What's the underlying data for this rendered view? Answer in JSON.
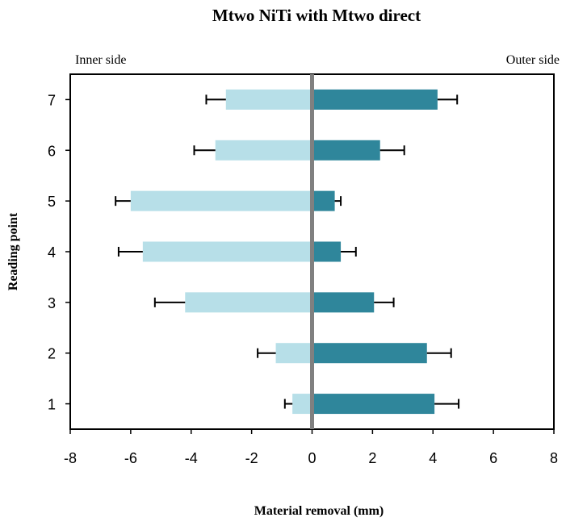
{
  "chart_data": {
    "type": "bar",
    "orientation": "horizontal",
    "title": "Mtwo NiTi with Mtwo direct",
    "xlabel": "Material removal (mm)",
    "ylabel": "Reading point",
    "side_labels": {
      "left": "Inner side",
      "right": "Outer side"
    },
    "categories": [
      "1",
      "2",
      "3",
      "4",
      "5",
      "6",
      "7"
    ],
    "xlim": [
      -8,
      8
    ],
    "xticks": [
      "-8",
      "-6",
      "-4",
      "-2",
      "0",
      "2",
      "4",
      "6",
      "8"
    ],
    "grid": false,
    "series": [
      {
        "values": [
          -0.65,
          -1.2,
          -4.2,
          -5.6,
          -6.0,
          -3.2,
          -2.85
        ],
        "errors": [
          0.25,
          0.6,
          1.0,
          0.8,
          0.5,
          0.7,
          0.65
        ]
      },
      {
        "values": [
          4.05,
          3.8,
          2.05,
          0.95,
          0.75,
          2.25,
          4.15
        ],
        "errors": [
          0.8,
          0.8,
          0.65,
          0.5,
          0.2,
          0.8,
          0.65
        ]
      }
    ],
    "colors": {
      "inner": "#b7dfe8",
      "outer": "#2f869b",
      "zero_line": "#808080"
    }
  }
}
